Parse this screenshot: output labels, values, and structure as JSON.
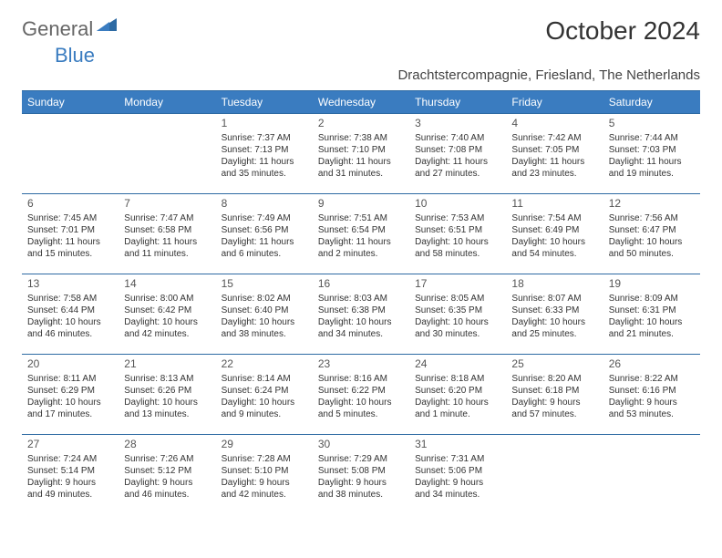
{
  "brand": {
    "general": "General",
    "blue": "Blue"
  },
  "title": "October 2024",
  "location": "Drachtstercompagnie, Friesland, The Netherlands",
  "colors": {
    "accent": "#3a7cc0",
    "text": "#333333",
    "muted": "#666666"
  },
  "dayHeaders": [
    "Sunday",
    "Monday",
    "Tuesday",
    "Wednesday",
    "Thursday",
    "Friday",
    "Saturday"
  ],
  "weeks": [
    [
      null,
      null,
      {
        "n": "1",
        "sunrise": "Sunrise: 7:37 AM",
        "sunset": "Sunset: 7:13 PM",
        "daylight": "Daylight: 11 hours and 35 minutes."
      },
      {
        "n": "2",
        "sunrise": "Sunrise: 7:38 AM",
        "sunset": "Sunset: 7:10 PM",
        "daylight": "Daylight: 11 hours and 31 minutes."
      },
      {
        "n": "3",
        "sunrise": "Sunrise: 7:40 AM",
        "sunset": "Sunset: 7:08 PM",
        "daylight": "Daylight: 11 hours and 27 minutes."
      },
      {
        "n": "4",
        "sunrise": "Sunrise: 7:42 AM",
        "sunset": "Sunset: 7:05 PM",
        "daylight": "Daylight: 11 hours and 23 minutes."
      },
      {
        "n": "5",
        "sunrise": "Sunrise: 7:44 AM",
        "sunset": "Sunset: 7:03 PM",
        "daylight": "Daylight: 11 hours and 19 minutes."
      }
    ],
    [
      {
        "n": "6",
        "sunrise": "Sunrise: 7:45 AM",
        "sunset": "Sunset: 7:01 PM",
        "daylight": "Daylight: 11 hours and 15 minutes."
      },
      {
        "n": "7",
        "sunrise": "Sunrise: 7:47 AM",
        "sunset": "Sunset: 6:58 PM",
        "daylight": "Daylight: 11 hours and 11 minutes."
      },
      {
        "n": "8",
        "sunrise": "Sunrise: 7:49 AM",
        "sunset": "Sunset: 6:56 PM",
        "daylight": "Daylight: 11 hours and 6 minutes."
      },
      {
        "n": "9",
        "sunrise": "Sunrise: 7:51 AM",
        "sunset": "Sunset: 6:54 PM",
        "daylight": "Daylight: 11 hours and 2 minutes."
      },
      {
        "n": "10",
        "sunrise": "Sunrise: 7:53 AM",
        "sunset": "Sunset: 6:51 PM",
        "daylight": "Daylight: 10 hours and 58 minutes."
      },
      {
        "n": "11",
        "sunrise": "Sunrise: 7:54 AM",
        "sunset": "Sunset: 6:49 PM",
        "daylight": "Daylight: 10 hours and 54 minutes."
      },
      {
        "n": "12",
        "sunrise": "Sunrise: 7:56 AM",
        "sunset": "Sunset: 6:47 PM",
        "daylight": "Daylight: 10 hours and 50 minutes."
      }
    ],
    [
      {
        "n": "13",
        "sunrise": "Sunrise: 7:58 AM",
        "sunset": "Sunset: 6:44 PM",
        "daylight": "Daylight: 10 hours and 46 minutes."
      },
      {
        "n": "14",
        "sunrise": "Sunrise: 8:00 AM",
        "sunset": "Sunset: 6:42 PM",
        "daylight": "Daylight: 10 hours and 42 minutes."
      },
      {
        "n": "15",
        "sunrise": "Sunrise: 8:02 AM",
        "sunset": "Sunset: 6:40 PM",
        "daylight": "Daylight: 10 hours and 38 minutes."
      },
      {
        "n": "16",
        "sunrise": "Sunrise: 8:03 AM",
        "sunset": "Sunset: 6:38 PM",
        "daylight": "Daylight: 10 hours and 34 minutes."
      },
      {
        "n": "17",
        "sunrise": "Sunrise: 8:05 AM",
        "sunset": "Sunset: 6:35 PM",
        "daylight": "Daylight: 10 hours and 30 minutes."
      },
      {
        "n": "18",
        "sunrise": "Sunrise: 8:07 AM",
        "sunset": "Sunset: 6:33 PM",
        "daylight": "Daylight: 10 hours and 25 minutes."
      },
      {
        "n": "19",
        "sunrise": "Sunrise: 8:09 AM",
        "sunset": "Sunset: 6:31 PM",
        "daylight": "Daylight: 10 hours and 21 minutes."
      }
    ],
    [
      {
        "n": "20",
        "sunrise": "Sunrise: 8:11 AM",
        "sunset": "Sunset: 6:29 PM",
        "daylight": "Daylight: 10 hours and 17 minutes."
      },
      {
        "n": "21",
        "sunrise": "Sunrise: 8:13 AM",
        "sunset": "Sunset: 6:26 PM",
        "daylight": "Daylight: 10 hours and 13 minutes."
      },
      {
        "n": "22",
        "sunrise": "Sunrise: 8:14 AM",
        "sunset": "Sunset: 6:24 PM",
        "daylight": "Daylight: 10 hours and 9 minutes."
      },
      {
        "n": "23",
        "sunrise": "Sunrise: 8:16 AM",
        "sunset": "Sunset: 6:22 PM",
        "daylight": "Daylight: 10 hours and 5 minutes."
      },
      {
        "n": "24",
        "sunrise": "Sunrise: 8:18 AM",
        "sunset": "Sunset: 6:20 PM",
        "daylight": "Daylight: 10 hours and 1 minute."
      },
      {
        "n": "25",
        "sunrise": "Sunrise: 8:20 AM",
        "sunset": "Sunset: 6:18 PM",
        "daylight": "Daylight: 9 hours and 57 minutes."
      },
      {
        "n": "26",
        "sunrise": "Sunrise: 8:22 AM",
        "sunset": "Sunset: 6:16 PM",
        "daylight": "Daylight: 9 hours and 53 minutes."
      }
    ],
    [
      {
        "n": "27",
        "sunrise": "Sunrise: 7:24 AM",
        "sunset": "Sunset: 5:14 PM",
        "daylight": "Daylight: 9 hours and 49 minutes."
      },
      {
        "n": "28",
        "sunrise": "Sunrise: 7:26 AM",
        "sunset": "Sunset: 5:12 PM",
        "daylight": "Daylight: 9 hours and 46 minutes."
      },
      {
        "n": "29",
        "sunrise": "Sunrise: 7:28 AM",
        "sunset": "Sunset: 5:10 PM",
        "daylight": "Daylight: 9 hours and 42 minutes."
      },
      {
        "n": "30",
        "sunrise": "Sunrise: 7:29 AM",
        "sunset": "Sunset: 5:08 PM",
        "daylight": "Daylight: 9 hours and 38 minutes."
      },
      {
        "n": "31",
        "sunrise": "Sunrise: 7:31 AM",
        "sunset": "Sunset: 5:06 PM",
        "daylight": "Daylight: 9 hours and 34 minutes."
      },
      null,
      null
    ]
  ]
}
